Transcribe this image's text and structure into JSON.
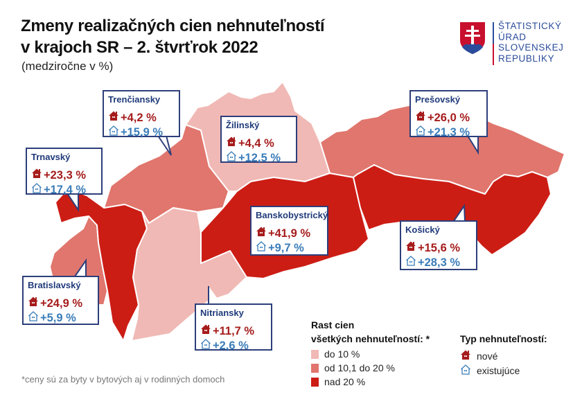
{
  "header": {
    "title_line1": "Zmeny realizačných cien nehnuteľností",
    "title_line2": "v krajoch SR – 2. štvrťrok 2022",
    "subtitle": "(medziročne v %)"
  },
  "logo": {
    "lines": [
      "ŠTATISTICKÝ",
      "ÚRAD",
      "SLOVENSKEJ",
      "REPUBLIKY"
    ]
  },
  "colors": {
    "low": "#f0b9b5",
    "mid": "#e0766d",
    "high": "#cc1d15",
    "new": "#a61c1c",
    "existing": "#3a7cb8",
    "border": "#2c3e7a"
  },
  "regions": {
    "trenciansky": {
      "name": "Trenčiansky",
      "new": "+4,2 %",
      "existing": "+15,9 %",
      "category": "mid"
    },
    "zilinsky": {
      "name": "Žilinský",
      "new": "+4,4 %",
      "existing": "+12,5 %",
      "category": "low"
    },
    "trnavsky": {
      "name": "Trnavský",
      "new": "+23,3 %",
      "existing": "+17,4 %",
      "category": "high"
    },
    "presovsky": {
      "name": "Prešovský",
      "new": "+26,0 %",
      "existing": "+21,3 %",
      "category": "mid"
    },
    "banskobystricky": {
      "name": "Banskobystrický",
      "new": "+41,9 %",
      "existing": "+9,7 %",
      "category": "high"
    },
    "kosicky": {
      "name": "Košický",
      "new": "+15,6 %",
      "existing": "+28,3 %",
      "category": "high"
    },
    "bratislavsky": {
      "name": "Bratislavský",
      "new": "+24,9 %",
      "existing": "+5,9 %",
      "category": "mid"
    },
    "nitriansky": {
      "name": "Nitriansky",
      "new": "+11,7 %",
      "existing": "+2,6 %",
      "category": "low"
    }
  },
  "legend": {
    "growth_title1": "Rast cien",
    "growth_title2": "všetkých nehnuteľností: *",
    "growth_items": [
      "do 10 %",
      "od 10,1 do 20 %",
      "nad 20 %"
    ],
    "type_title": "Typ nehnuteľností:",
    "type_items": [
      "nové",
      "existujúce"
    ]
  },
  "footnote": "*ceny sú za byty v bytových aj v rodinných domoch"
}
